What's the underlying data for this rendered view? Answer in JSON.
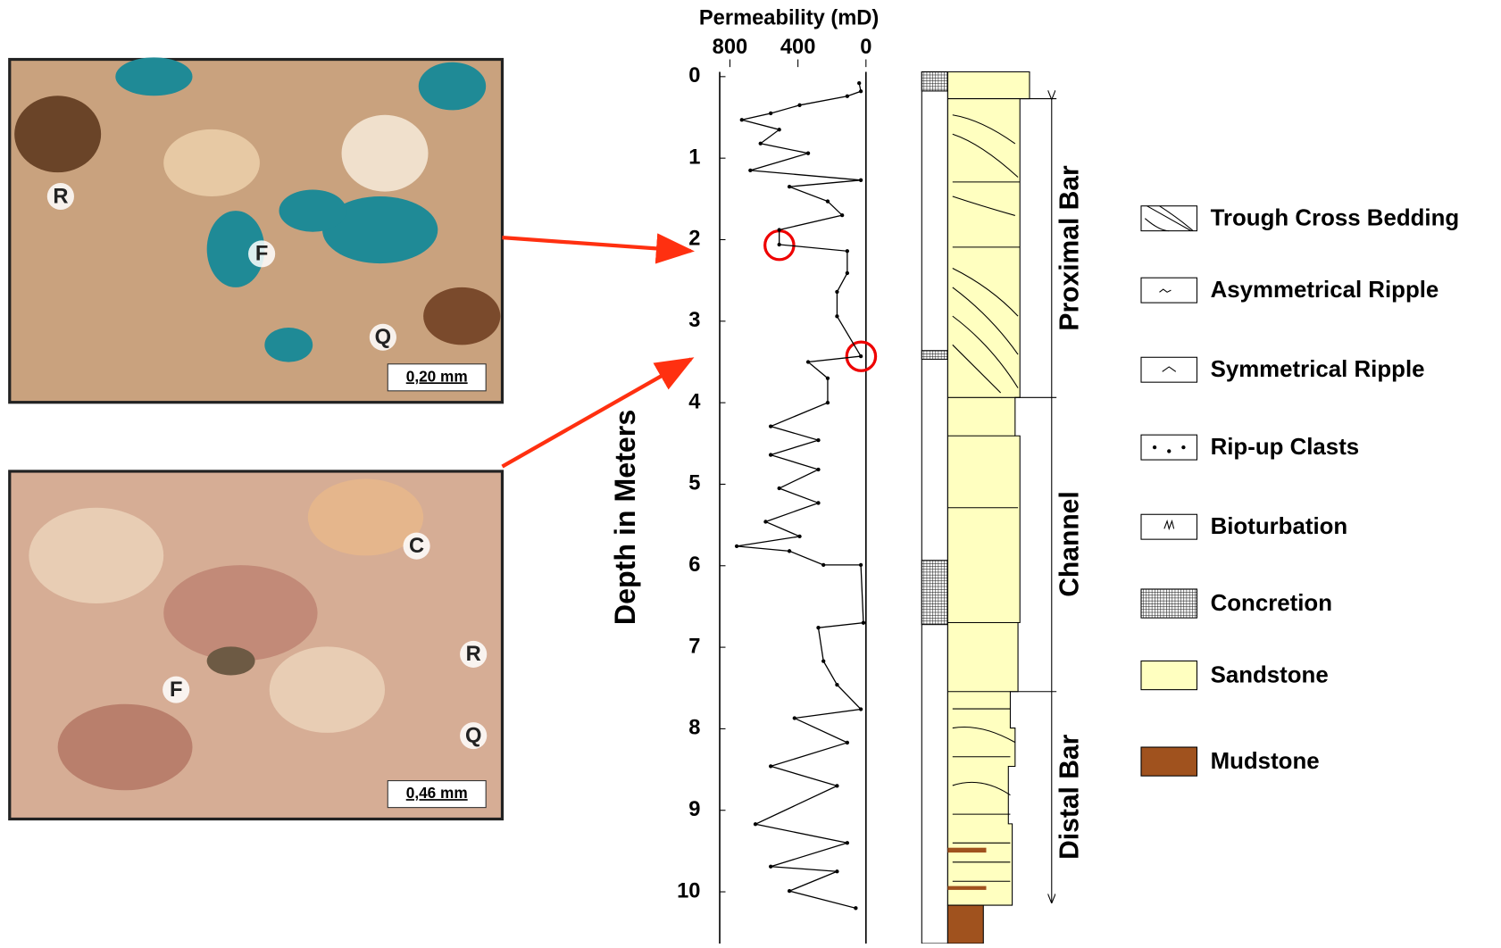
{
  "chart_data": {
    "type": "line",
    "x_label": "Permeability (mD)",
    "y_label": "Depth in Meters",
    "color": "#000000",
    "x_inverted": true,
    "y_inverted": true,
    "xlim": [
      860,
      0
    ],
    "xticks": [
      800,
      400,
      0
    ],
    "ylim": [
      0,
      10.6
    ],
    "yticks": [
      0,
      1,
      2,
      3,
      4,
      5,
      6,
      7,
      8,
      9,
      10
    ],
    "x": [
      40,
      30,
      110,
      390,
      560,
      730,
      510,
      620,
      340,
      680,
      30,
      450,
      225,
      140,
      510,
      510,
      110,
      110,
      170,
      170,
      30,
      340,
      225,
      225,
      560,
      280,
      560,
      280,
      510,
      280,
      590,
      390,
      760,
      450,
      250,
      30,
      15,
      280,
      250,
      170,
      30,
      420,
      110,
      560,
      170,
      650,
      110,
      560,
      170,
      450,
      60
    ],
    "values": [
      0.08,
      0.18,
      0.24,
      0.35,
      0.45,
      0.53,
      0.65,
      0.82,
      0.94,
      1.15,
      1.27,
      1.35,
      1.53,
      1.7,
      1.88,
      2.06,
      2.14,
      2.41,
      2.64,
      2.94,
      3.43,
      3.5,
      3.7,
      4.0,
      4.29,
      4.46,
      4.64,
      4.82,
      5.05,
      5.23,
      5.46,
      5.64,
      5.76,
      5.82,
      5.99,
      5.99,
      6.7,
      6.76,
      7.17,
      7.46,
      7.76,
      7.87,
      8.17,
      8.46,
      8.7,
      9.17,
      9.4,
      9.69,
      9.75,
      9.99,
      10.2
    ]
  },
  "photos": [
    {
      "labels": [
        "R",
        "F",
        "Q"
      ],
      "scale": "0,20 mm"
    },
    {
      "labels": [
        "C",
        "R",
        "F",
        "Q"
      ],
      "scale": "0,46 mm"
    }
  ],
  "column": {
    "intervals": [
      "Proximal Bar",
      "Channel",
      "Distal Bar"
    ]
  },
  "legend": [
    "Trough Cross Bedding",
    "Asymmetrical Ripple",
    "Symmetrical Ripple",
    "Rip-up Clasts",
    "Bioturbation",
    "Concretion",
    "Sandstone",
    "Mudstone"
  ]
}
